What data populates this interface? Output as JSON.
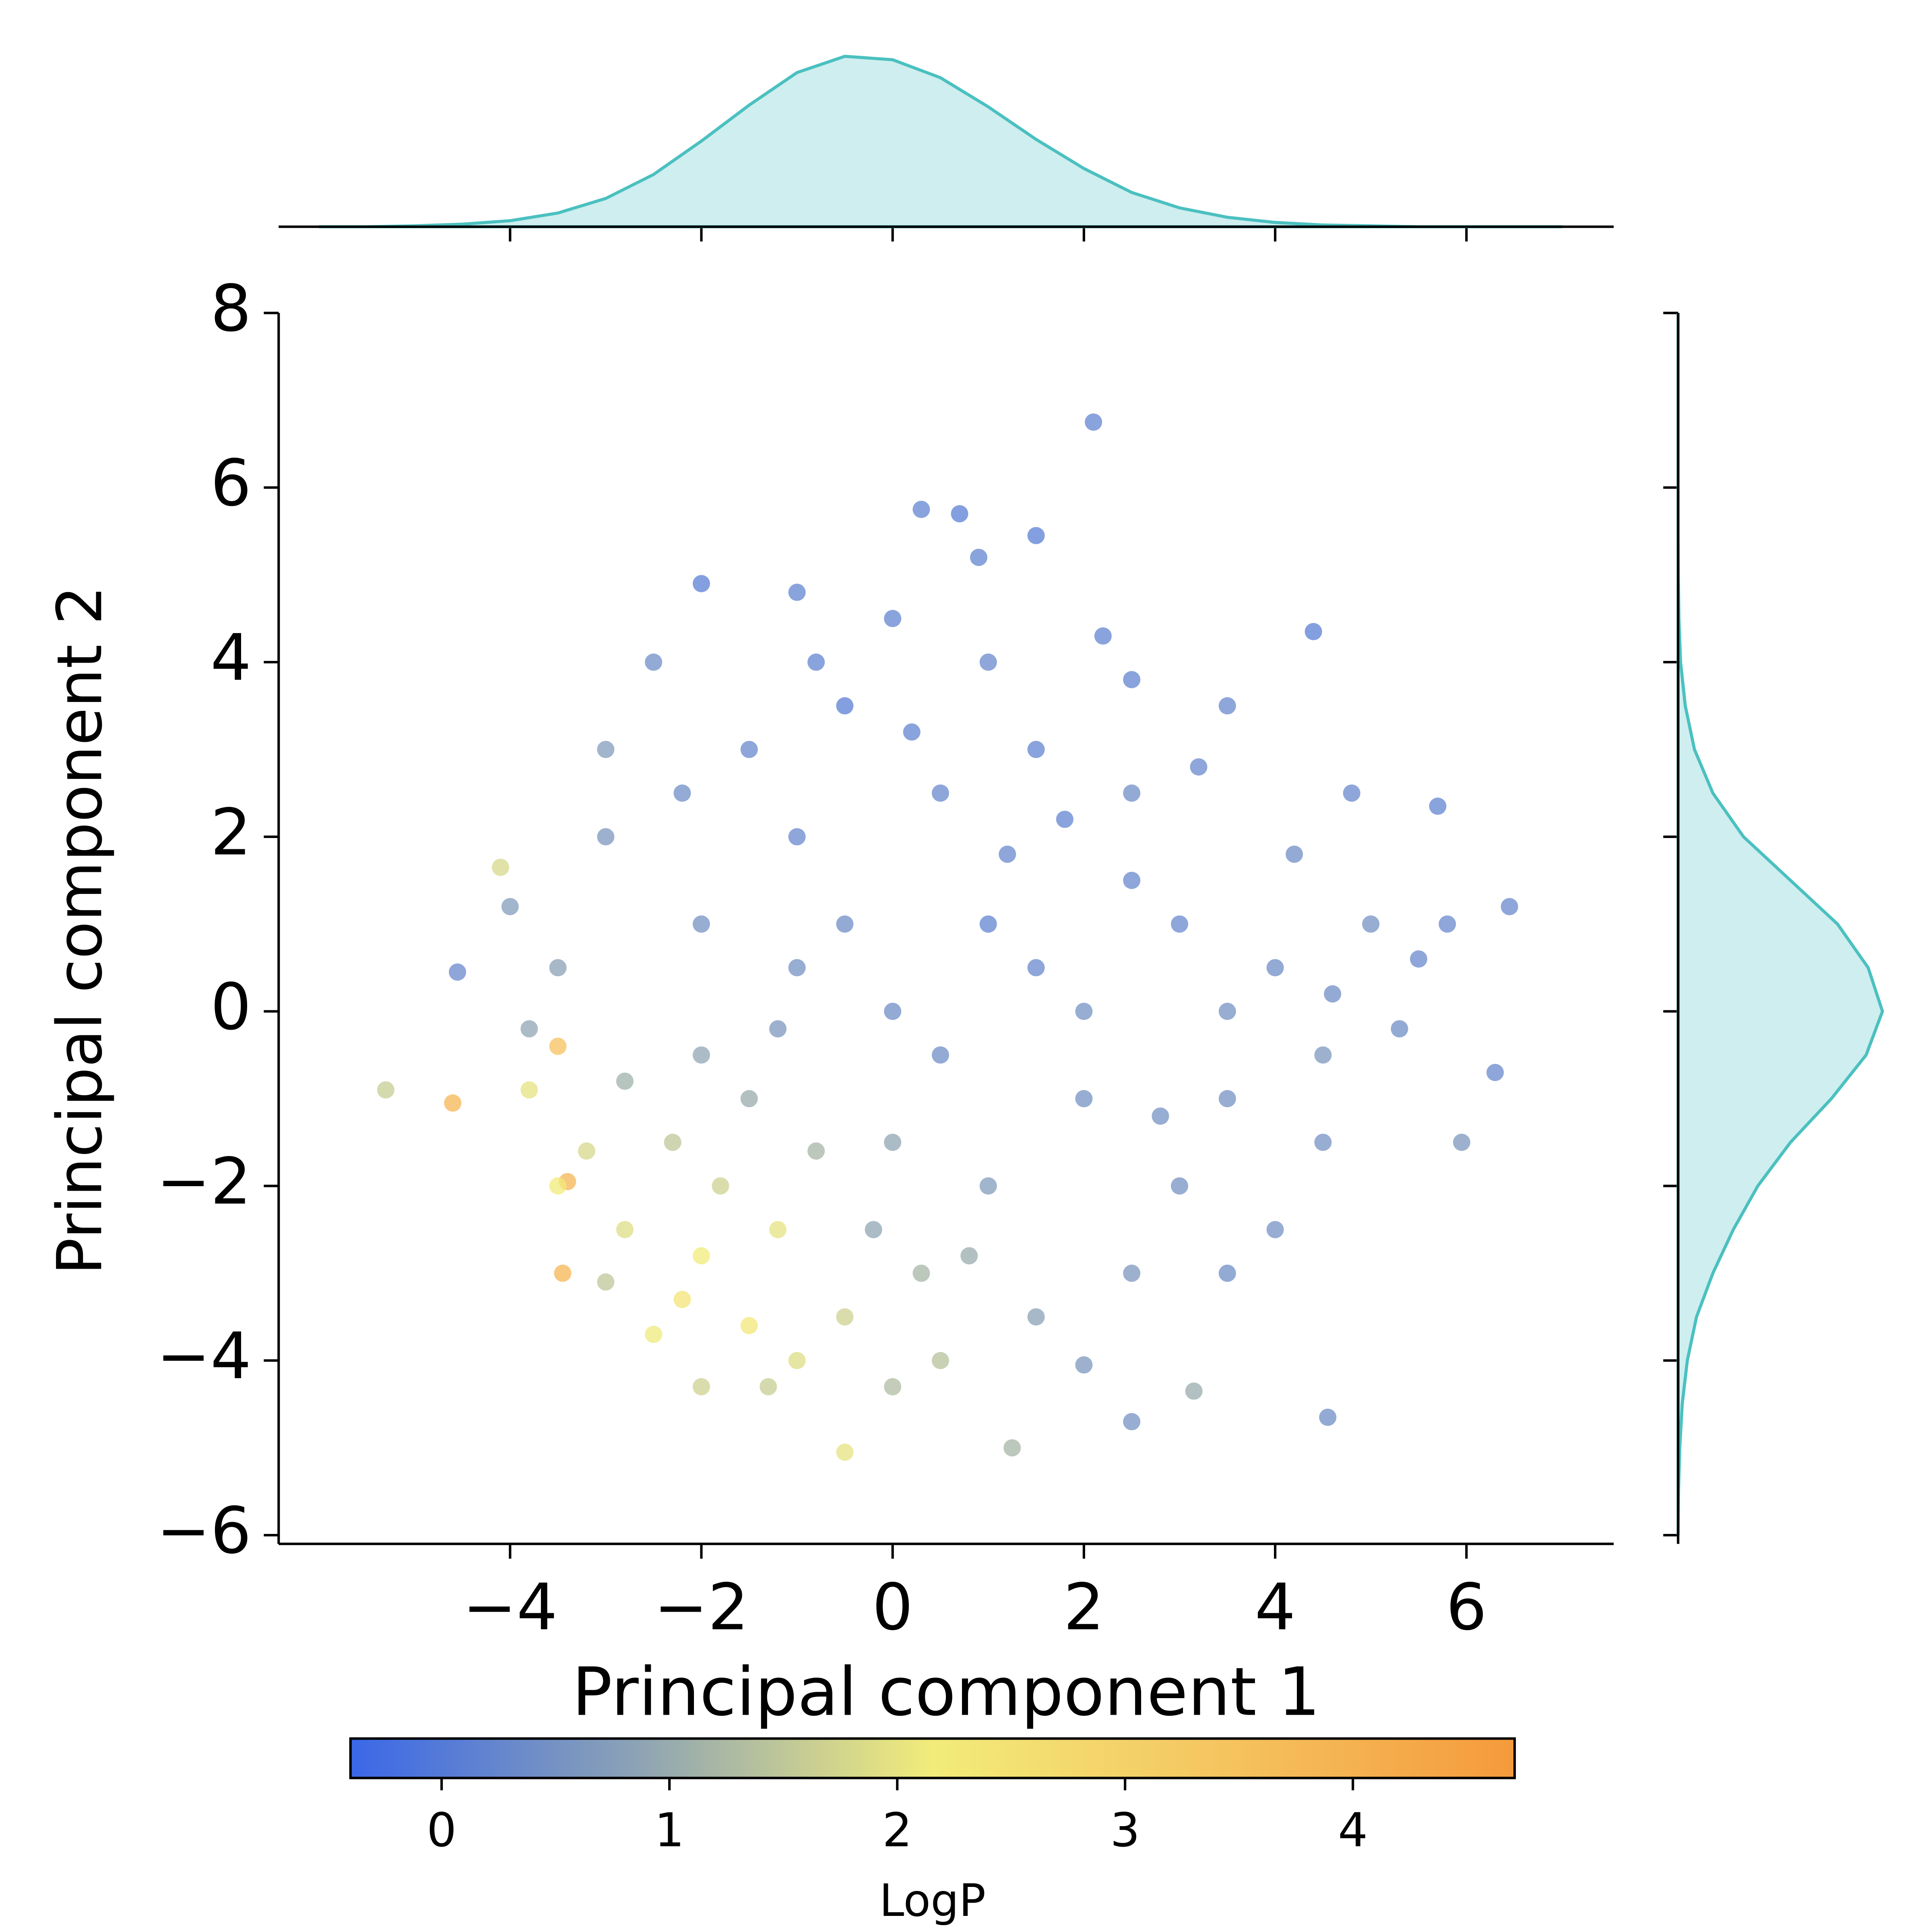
{
  "chart_data": {
    "type": "scatter",
    "x_label": "Principal component 1",
    "y_label": "Principal component 2",
    "x": [
      2.1,
      0.3,
      0.7,
      1.5,
      -5.3,
      -4.6,
      -3.4,
      -3.45,
      6.45,
      6.3,
      5.95,
      4.55,
      2.5,
      -0.5,
      1.25,
      3.15,
      -4.55,
      -4.1,
      -3.5,
      5.7,
      4.4,
      -1.0,
      -2.0,
      0.9,
      2.0,
      -1.3,
      0.0,
      -2.0,
      -3.0,
      -2.5,
      -1.5,
      -1.0,
      -2.8,
      -3.2,
      -3.8,
      -2.0,
      -1.2,
      -0.5,
      0.5,
      0.3,
      -2.3,
      -1.8,
      -3.5,
      -0.8,
      -2.2,
      0,
      1,
      -1,
      2,
      3,
      -2,
      1.5,
      -0.5,
      0.5,
      2.5,
      3.5,
      4,
      4.5,
      5,
      5.3,
      4.8,
      3.5,
      2.5,
      -3,
      -3.5,
      -3,
      -2.5,
      -1.5,
      0,
      1,
      2,
      1,
      0,
      -1,
      -2,
      3,
      2.5,
      1.5,
      3.5,
      4,
      4.5,
      -0.5,
      0.5,
      1.5,
      2.5,
      3.5,
      -1.5,
      0.8,
      -0.2,
      4.2,
      -4,
      -3.8,
      1.8,
      -2.2,
      0.2,
      2.8,
      -1.2,
      3.2,
      4.6,
      5.5,
      5.8,
      2.2,
      -0.8,
      1.2,
      -2.8
    ],
    "y": [
      6.75,
      5.75,
      5.7,
      5.45,
      -0.9,
      -1.05,
      -1.95,
      -3.0,
      1.2,
      -0.7,
      -1.5,
      -4.65,
      -4.7,
      -5.05,
      -5.0,
      -4.35,
      0.45,
      1.65,
      -0.4,
      2.35,
      4.35,
      4.8,
      4.9,
      5.2,
      -4.05,
      -4.3,
      -4.3,
      -4.3,
      -3.1,
      -3.7,
      -3.6,
      -4.0,
      -2.5,
      -1.6,
      -0.9,
      -2.8,
      -2.5,
      -3.5,
      -4.0,
      -3.0,
      -1.5,
      -2.0,
      -2.0,
      -1.6,
      -3.3,
      0,
      1,
      2,
      -1,
      1,
      1,
      3,
      3.5,
      2.5,
      2.5,
      -1,
      0.5,
      -0.5,
      1,
      -0.2,
      2.5,
      3.5,
      3.8,
      2,
      0.5,
      3,
      4,
      3,
      4.5,
      4,
      0,
      -2,
      -1.5,
      0.5,
      -0.5,
      -2,
      -3,
      -3.5,
      -3,
      -2.5,
      -1.5,
      1,
      -0.5,
      0.5,
      1.5,
      0,
      -1,
      -2.8,
      -2.5,
      1.8,
      1.2,
      -0.2,
      2.2,
      2.5,
      3.2,
      -1.2,
      -0.2,
      2.8,
      0.2,
      0.6,
      1.0,
      4.3,
      4.0,
      1.8,
      -0.8
    ],
    "color_values": [
      0.2,
      0.2,
      0.1,
      0.1,
      1.6,
      3.9,
      3.9,
      3.9,
      0.3,
      0.3,
      0.6,
      0.4,
      0.5,
      2.0,
      1.2,
      1.0,
      0.3,
      1.8,
      3.5,
      0.2,
      0.1,
      0.2,
      0.1,
      0.2,
      0.6,
      1.6,
      1.3,
      1.7,
      1.5,
      2.1,
      2.3,
      1.9,
      1.9,
      1.8,
      2.0,
      2.2,
      2.0,
      1.7,
      1.4,
      1.2,
      1.5,
      1.7,
      2.2,
      1.2,
      2.4,
      0.4,
      0.2,
      0.3,
      0.5,
      0.3,
      0.5,
      0.2,
      0.1,
      0.3,
      0.4,
      0.5,
      0.4,
      0.6,
      0.5,
      0.4,
      0.3,
      0.3,
      0.2,
      0.6,
      0.8,
      0.7,
      0.4,
      0.3,
      0.2,
      0.3,
      0.5,
      0.7,
      0.9,
      0.5,
      0.9,
      0.5,
      0.6,
      0.8,
      0.4,
      0.5,
      0.5,
      0.4,
      0.4,
      0.3,
      0.3,
      0.5,
      1.0,
      1.0,
      0.9,
      0.4,
      0.7,
      0.9,
      0.2,
      0.4,
      0.2,
      0.5,
      0.6,
      0.3,
      0.4,
      0.3,
      0.3,
      0.2,
      0.2,
      0.3,
      1.1
    ],
    "marker_alpha": 0.75,
    "xlim": [
      -6.42,
      7.54
    ],
    "ylim": [
      -6.1,
      8
    ],
    "xticks": [
      {
        "value": -4,
        "label": "−4"
      },
      {
        "value": -2,
        "label": "−2"
      },
      0,
      2,
      4,
      6
    ],
    "yticks": [
      {
        "value": -6,
        "label": "−6"
      },
      {
        "value": -4,
        "label": "−4"
      },
      {
        "value": -2,
        "label": "−2"
      },
      0,
      2,
      4,
      6,
      8
    ],
    "colorbar": {
      "label": "LogP",
      "lim": [
        -0.4,
        4.71
      ],
      "ticks": [
        0,
        1,
        2,
        3,
        4
      ],
      "colormap": [
        "#3a67e8",
        "#8ea4b4",
        "#f2ec7a",
        "#f5c460",
        "#f59a3c"
      ]
    },
    "marginal_x": {
      "type": "kde",
      "color": "#4bc0c0",
      "fill": "#cfeeef",
      "ylim": [
        0,
        0.2
      ],
      "x": [
        -6,
        -5.5,
        -5,
        -4.5,
        -4,
        -3.5,
        -3,
        -2.5,
        -2,
        -1.5,
        -1,
        -0.5,
        0,
        0.5,
        1,
        1.5,
        2,
        2.5,
        3,
        3.5,
        4,
        4.5,
        5,
        5.5,
        6,
        6.5,
        7
      ],
      "density": [
        0,
        0,
        0.001,
        0.003,
        0.007,
        0.016,
        0.033,
        0.061,
        0.1,
        0.142,
        0.18,
        0.199,
        0.195,
        0.174,
        0.14,
        0.102,
        0.068,
        0.04,
        0.022,
        0.011,
        0.005,
        0.002,
        0.001,
        0,
        0,
        0,
        0
      ]
    },
    "marginal_y": {
      "type": "kde",
      "color": "#4bc0c0",
      "fill": "#cfeeef",
      "xlim": [
        0,
        0.2
      ],
      "y": [
        -6,
        -5.5,
        -5,
        -4.5,
        -4,
        -3.5,
        -3,
        -2.5,
        -2,
        -1.5,
        -1,
        -0.5,
        0,
        0.5,
        1,
        1.5,
        2,
        2.5,
        3,
        3.5,
        4,
        4.5,
        5,
        5.5,
        6,
        6.5,
        7,
        7.5,
        8
      ],
      "density": [
        0,
        0.0004,
        0.0016,
        0.004,
        0.009,
        0.018,
        0.034,
        0.054,
        0.078,
        0.11,
        0.15,
        0.184,
        0.2,
        0.186,
        0.156,
        0.11,
        0.064,
        0.034,
        0.016,
        0.007,
        0.0024,
        0.0008,
        0.0002,
        0,
        0,
        0,
        0,
        0,
        0
      ]
    }
  }
}
